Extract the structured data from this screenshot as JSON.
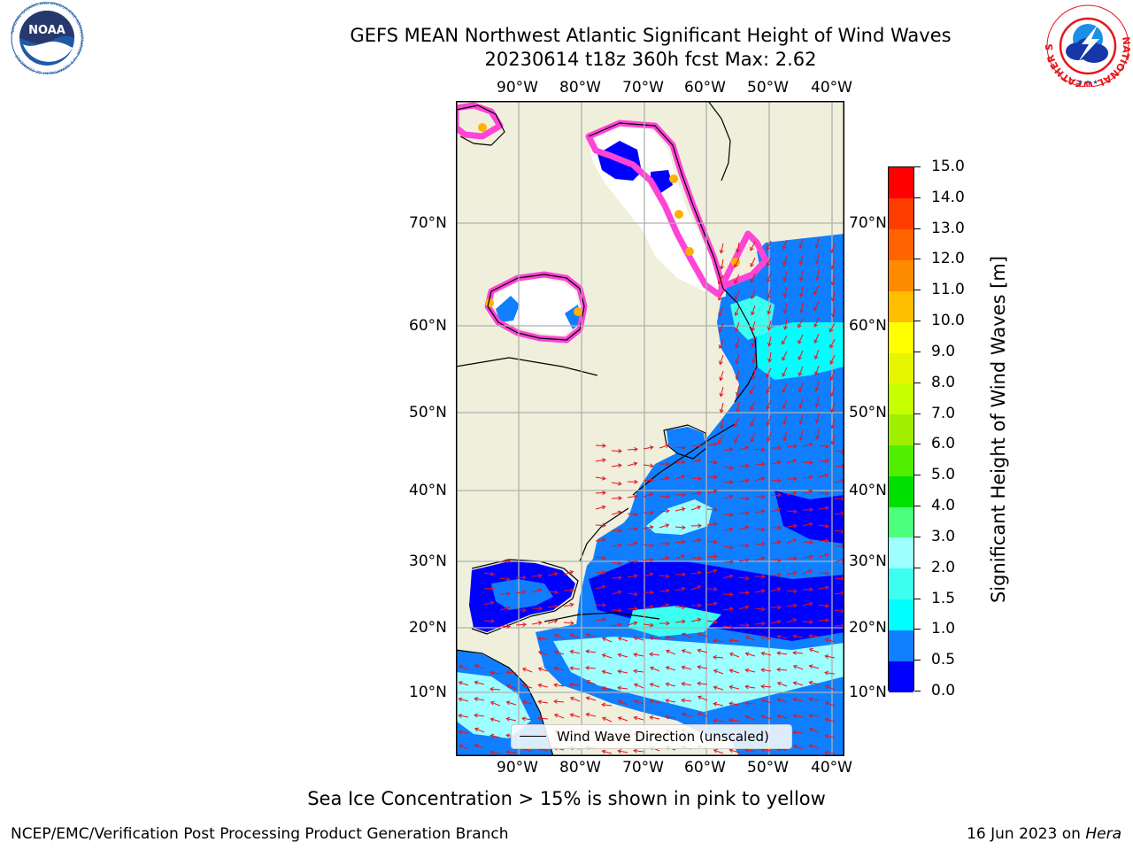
{
  "title": {
    "line1": "GEFS MEAN Northwest Atlantic Significant Height of Wind Waves",
    "line2": "20230614 t18z 360h fcst   Max: 2.62"
  },
  "logos": {
    "noaa": {
      "text": "NOAA",
      "ring_text": "NATIONAL OCEANIC AND ATMOSPHERIC ADMINISTRATION · U.S. DEPARTMENT OF COMMERCE",
      "color": "#1f5aa6"
    },
    "nws": {
      "ring_text": "NATIONAL WEATHER SERVICE",
      "color": "#e8151b"
    }
  },
  "map": {
    "lon_ticks_top": [
      "90°W",
      "80°W",
      "70°W",
      "60°W",
      "50°W",
      "40°W"
    ],
    "lon_ticks_bottom": [
      "90°W",
      "80°W",
      "70°W",
      "60°W",
      "50°W",
      "40°W"
    ],
    "lat_ticks_left": [
      "70°N",
      "60°N",
      "50°N",
      "40°N",
      "30°N",
      "20°N",
      "10°N"
    ],
    "lat_ticks_right": [
      "70°N",
      "60°N",
      "50°N",
      "40°N",
      "30°N",
      "20°N",
      "10°N"
    ],
    "land_color": "#efefdc",
    "gridline_color": "#b0b0b0",
    "arrow_color": "#e8141a",
    "legend": "Wind Wave Direction (unscaled)"
  },
  "colorbar": {
    "title": "Significant Height of Wind Waves [m]",
    "labels": [
      "15.0",
      "14.0",
      "13.0",
      "12.0",
      "11.0",
      "10.0",
      "9.0",
      "8.0",
      "7.0",
      "6.0",
      "5.0",
      "4.0",
      "3.0",
      "2.0",
      "1.5",
      "1.0",
      "0.5",
      "0.0"
    ],
    "colors": [
      "#0000ff",
      "#0f7fff",
      "#00ffff",
      "#3cffef",
      "#9effff",
      "#4cff7c",
      "#00e000",
      "#50ef00",
      "#a0ef00",
      "#c8ff00",
      "#e6f500",
      "#ffff00",
      "#ffbe00",
      "#ff8c00",
      "#ff6400",
      "#ff3c00",
      "#ff0000"
    ]
  },
  "footnote": "Sea Ice Concentration > 15% is shown in pink to yellow",
  "credit": "NCEP/EMC/Verification Post Processing Product Generation Branch",
  "run_date": {
    "date": "16 Jun 2023 on ",
    "host": "Hera"
  }
}
